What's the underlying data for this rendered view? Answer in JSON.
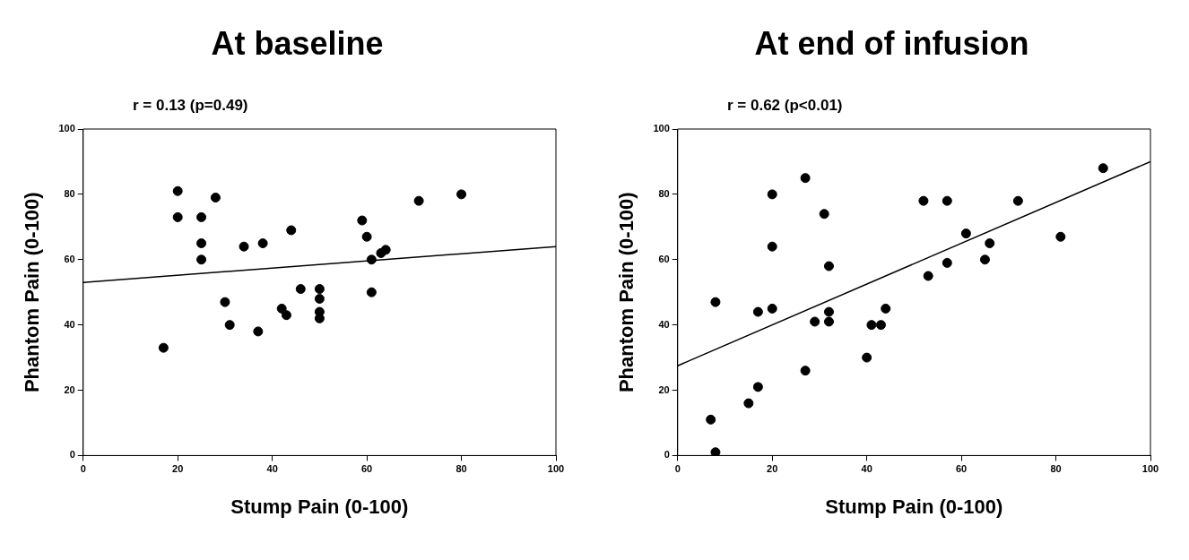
{
  "chart_data": [
    {
      "type": "scatter",
      "title": "At baseline",
      "subtitle": "r = 0.13 (p=0.49)",
      "xlabel": "Stump Pain (0-100)",
      "ylabel": "Phantom Pain (0-100)",
      "xlim": [
        0,
        100
      ],
      "ylim": [
        0,
        100
      ],
      "xticks": [
        0,
        20,
        40,
        60,
        80,
        100
      ],
      "yticks": [
        0,
        20,
        40,
        60,
        80,
        100
      ],
      "grid": false,
      "legend": false,
      "series": [
        {
          "marker": "circle",
          "color": "#000000",
          "x": [
            17,
            20,
            20,
            25,
            25,
            25,
            28,
            30,
            31,
            34,
            37,
            38,
            42,
            43,
            44,
            46,
            50,
            50,
            50,
            50,
            59,
            60,
            61,
            61,
            63,
            64,
            71,
            80
          ],
          "values": [
            33,
            81,
            73,
            73,
            65,
            60,
            79,
            47,
            40,
            64,
            38,
            65,
            45,
            43,
            69,
            51,
            51,
            48,
            44,
            42,
            72,
            67,
            60,
            50,
            62,
            63,
            78,
            80
          ]
        },
        {
          "type": "line",
          "marker": "none",
          "color": "#000000",
          "x": [
            0,
            100
          ],
          "values": [
            53,
            64
          ]
        }
      ]
    },
    {
      "type": "scatter",
      "title": "At end of infusion",
      "subtitle": "r = 0.62 (p<0.01)",
      "xlabel": "Stump Pain (0-100)",
      "ylabel": "Phantom Pain (0-100)",
      "xlim": [
        0,
        100
      ],
      "ylim": [
        0,
        100
      ],
      "xticks": [
        0,
        20,
        40,
        60,
        80,
        100
      ],
      "yticks": [
        0,
        20,
        40,
        60,
        80,
        100
      ],
      "grid": false,
      "legend": false,
      "series": [
        {
          "marker": "circle",
          "color": "#000000",
          "x": [
            7,
            8,
            8,
            15,
            17,
            17,
            20,
            20,
            20,
            27,
            27,
            29,
            31,
            32,
            32,
            32,
            40,
            41,
            43,
            44,
            53,
            52,
            57,
            57,
            61,
            65,
            66,
            72,
            81,
            90
          ],
          "values": [
            11,
            1,
            47,
            16,
            44,
            21,
            80,
            64,
            45,
            85,
            26,
            41,
            74,
            58,
            44,
            41,
            30,
            40,
            40,
            45,
            55,
            78,
            78,
            59,
            68,
            60,
            65,
            78,
            67,
            88
          ]
        },
        {
          "type": "line",
          "marker": "none",
          "color": "#000000",
          "x": [
            0,
            100
          ],
          "values": [
            27.5,
            90
          ]
        }
      ]
    }
  ]
}
